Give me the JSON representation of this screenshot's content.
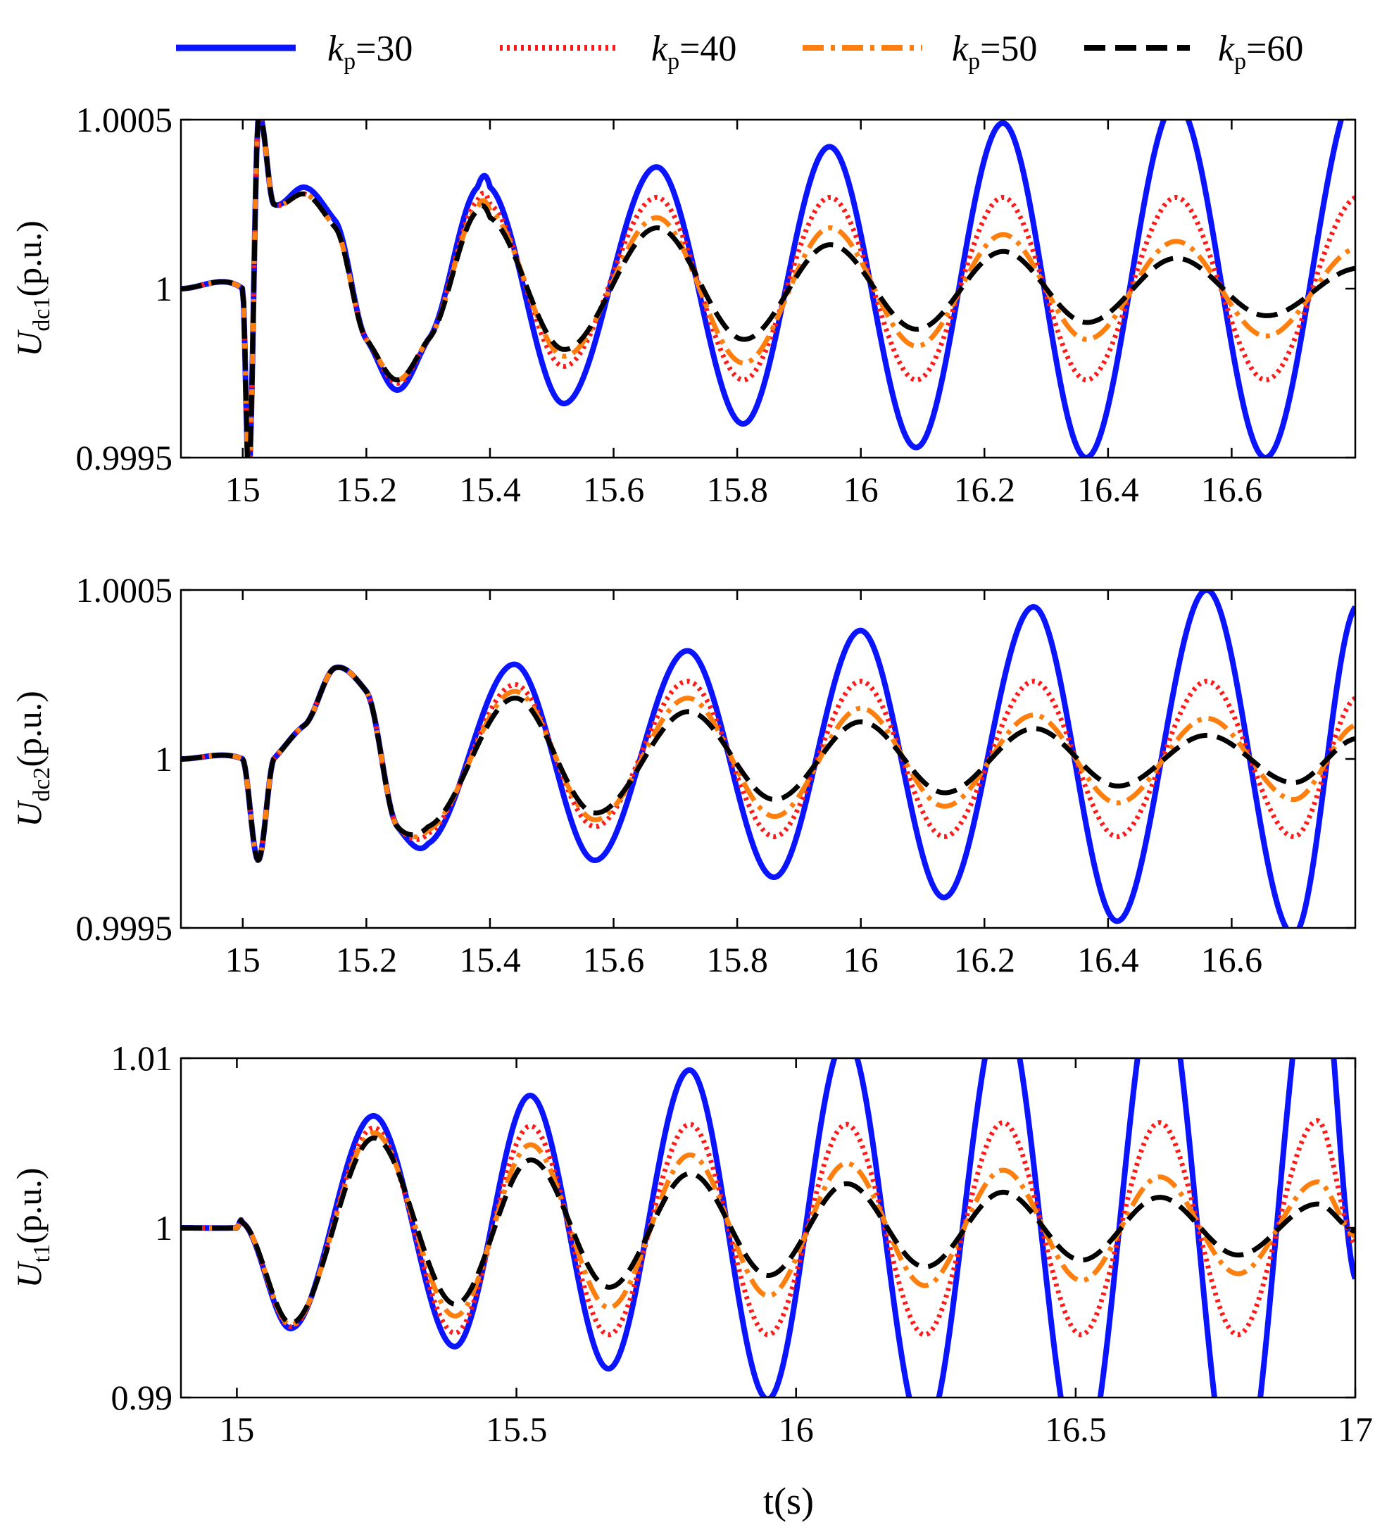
{
  "legend": {
    "symbol": "k",
    "items": [
      {
        "sub": "p",
        "label": "=30",
        "color": "#0a14ff",
        "style": "solid"
      },
      {
        "sub": "p",
        "label": "=40",
        "color": "#ff1a1a",
        "style": "dotted"
      },
      {
        "sub": "p",
        "label": "=50",
        "color": "#ff7f0e",
        "style": "dashdot"
      },
      {
        "sub": "p",
        "label": "=60",
        "color": "#000000",
        "style": "dashed"
      }
    ]
  },
  "xlabel": "t(s)",
  "chart_data": [
    {
      "type": "line",
      "ylabel": {
        "main": "U",
        "sub": "dc1",
        "rest": "(p.u.)"
      },
      "xlim": [
        14.9,
        16.8
      ],
      "ylim": [
        0.9995,
        1.0005
      ],
      "xticks": [
        15,
        15.2,
        15.4,
        15.6,
        15.8,
        16,
        16.2,
        16.4,
        16.6
      ],
      "xtick_labels": [
        "15",
        "15.2",
        "15.4",
        "15.6",
        "15.8",
        "16",
        "16.2",
        "16.4",
        "16.6"
      ],
      "yticks": [
        0.9995,
        1,
        1.0005
      ],
      "ytick_labels": [
        "0.9995",
        "1",
        "1.0005"
      ],
      "series": [
        {
          "name": "kp=30",
          "t": [
            14.9,
            15.0,
            15.01,
            15.025,
            15.05,
            15.1,
            15.15,
            15.2,
            15.25,
            15.3,
            15.38,
            15.4,
            15.52,
            15.67,
            15.81,
            15.95,
            16.09,
            16.23,
            16.365,
            16.51,
            16.655,
            16.8
          ],
          "v": [
            1.0,
            1.0,
            0.99945,
            1.0005,
            1.00025,
            1.0003,
            1.0002,
            0.99985,
            0.9997,
            0.99985,
            1.0003,
            1.0003,
            0.99966,
            1.00036,
            0.9996,
            1.00042,
            0.99953,
            1.00049,
            0.9995,
            1.00055,
            0.9995,
            1.0006
          ]
        },
        {
          "name": "kp=40",
          "t": [
            14.9,
            15.0,
            15.01,
            15.025,
            15.05,
            15.1,
            15.15,
            15.2,
            15.25,
            15.3,
            15.38,
            15.4,
            15.52,
            15.67,
            15.81,
            15.95,
            16.09,
            16.23,
            16.365,
            16.51,
            16.655,
            16.8
          ],
          "v": [
            1.0,
            1.0,
            0.99945,
            1.0005,
            1.00025,
            1.00028,
            1.00018,
            0.99985,
            0.99972,
            0.99985,
            1.00026,
            1.00025,
            0.99977,
            1.00027,
            0.99973,
            1.00027,
            0.99973,
            1.00027,
            0.99973,
            1.00027,
            0.99973,
            1.00027
          ]
        },
        {
          "name": "kp=50",
          "t": [
            14.9,
            15.0,
            15.01,
            15.025,
            15.05,
            15.1,
            15.15,
            15.2,
            15.25,
            15.3,
            15.38,
            15.4,
            15.52,
            15.67,
            15.81,
            15.95,
            16.09,
            16.23,
            16.365,
            16.51,
            16.655,
            16.8
          ],
          "v": [
            1.0,
            1.0,
            0.99945,
            1.0005,
            1.00025,
            1.00028,
            1.00018,
            0.99985,
            0.99973,
            0.99985,
            1.00024,
            1.00023,
            0.9998,
            1.00021,
            0.99978,
            1.00018,
            0.99983,
            1.00016,
            0.99985,
            1.00014,
            0.99986,
            1.00012
          ]
        },
        {
          "name": "kp=60",
          "t": [
            14.9,
            15.0,
            15.01,
            15.025,
            15.05,
            15.1,
            15.15,
            15.2,
            15.25,
            15.3,
            15.38,
            15.4,
            15.52,
            15.67,
            15.81,
            15.95,
            16.09,
            16.23,
            16.365,
            16.51,
            16.655,
            16.8
          ],
          "v": [
            1.0,
            1.0,
            0.99945,
            1.0005,
            1.00025,
            1.00028,
            1.00018,
            0.99985,
            0.99973,
            0.99985,
            1.00023,
            1.00021,
            0.99982,
            1.00018,
            0.99985,
            1.00013,
            0.99988,
            1.00011,
            0.9999,
            1.00009,
            0.99992,
            1.00006
          ]
        }
      ]
    },
    {
      "type": "line",
      "ylabel": {
        "main": "U",
        "sub": "dc2",
        "rest": "(p.u.)"
      },
      "xlim": [
        14.9,
        16.8
      ],
      "ylim": [
        0.9995,
        1.0005
      ],
      "xticks": [
        15,
        15.2,
        15.4,
        15.6,
        15.8,
        16,
        16.2,
        16.4,
        16.6
      ],
      "xtick_labels": [
        "15",
        "15.2",
        "15.4",
        "15.6",
        "15.8",
        "16",
        "16.2",
        "16.4",
        "16.6"
      ],
      "yticks": [
        0.9995,
        1,
        1.0005
      ],
      "ytick_labels": [
        "0.9995",
        "1",
        "1.0005"
      ],
      "series": [
        {
          "name": "kp=30",
          "t": [
            14.9,
            15.0,
            15.025,
            15.05,
            15.1,
            15.15,
            15.2,
            15.25,
            15.3,
            15.44,
            15.57,
            15.72,
            15.86,
            16.0,
            16.135,
            16.28,
            16.415,
            16.56,
            16.7,
            16.8
          ],
          "v": [
            1.0,
            1.0,
            0.9997,
            1.0,
            1.0001,
            1.00027,
            1.0002,
            0.9998,
            0.99975,
            1.00028,
            0.9997,
            1.00032,
            0.99965,
            1.00038,
            0.99959,
            1.00045,
            0.99952,
            1.0005,
            0.99948,
            1.00045
          ]
        },
        {
          "name": "kp=40",
          "t": [
            14.9,
            15.0,
            15.025,
            15.05,
            15.1,
            15.15,
            15.2,
            15.25,
            15.3,
            15.44,
            15.57,
            15.72,
            15.86,
            16.0,
            16.135,
            16.28,
            16.415,
            16.56,
            16.7,
            16.8
          ],
          "v": [
            1.0,
            1.0,
            0.9997,
            1.0,
            1.0001,
            1.00027,
            1.0002,
            0.9998,
            0.99978,
            1.00022,
            0.9998,
            1.00023,
            0.99977,
            1.00023,
            0.99977,
            1.00023,
            0.99977,
            1.00023,
            0.99977,
            1.00018
          ]
        },
        {
          "name": "kp=50",
          "t": [
            14.9,
            15.0,
            15.025,
            15.05,
            15.1,
            15.15,
            15.2,
            15.25,
            15.3,
            15.44,
            15.57,
            15.72,
            15.86,
            16.0,
            16.135,
            16.28,
            16.415,
            16.56,
            16.7,
            16.8
          ],
          "v": [
            1.0,
            1.0,
            0.9997,
            1.0,
            1.0001,
            1.00027,
            1.0002,
            0.9998,
            0.99979,
            1.0002,
            0.99982,
            1.00018,
            0.99983,
            1.00015,
            0.99986,
            1.00013,
            0.99987,
            1.00012,
            0.99988,
            1.0001
          ]
        },
        {
          "name": "kp=60",
          "t": [
            14.9,
            15.0,
            15.025,
            15.05,
            15.1,
            15.15,
            15.2,
            15.25,
            15.3,
            15.44,
            15.57,
            15.72,
            15.86,
            16.0,
            16.135,
            16.28,
            16.415,
            16.56,
            16.7,
            16.8
          ],
          "v": [
            1.0,
            1.0,
            0.9997,
            1.0,
            1.0001,
            1.00027,
            1.0002,
            0.9998,
            0.9998,
            1.00018,
            0.99984,
            1.00014,
            0.99988,
            1.00011,
            0.9999,
            1.00009,
            0.99992,
            1.00007,
            0.99993,
            1.00006
          ]
        }
      ]
    },
    {
      "type": "line",
      "ylabel": {
        "main": "U",
        "sub": "t1",
        "rest": "(p.u.)"
      },
      "xlim": [
        14.9,
        17.0
      ],
      "ylim": [
        0.99,
        1.01
      ],
      "xticks": [
        15,
        15.5,
        16,
        16.5,
        17
      ],
      "xtick_labels": [
        "15",
        "15.5",
        "16",
        "16.5",
        "17"
      ],
      "yticks": [
        0.99,
        1,
        1.01
      ],
      "ytick_labels": [
        "0.99",
        "1",
        "1.01"
      ],
      "series": [
        {
          "name": "kp=30",
          "t": [
            14.9,
            15.0,
            15.01,
            15.1,
            15.245,
            15.39,
            15.525,
            15.665,
            15.81,
            15.95,
            16.09,
            16.23,
            16.37,
            16.51,
            16.65,
            16.79,
            16.93,
            17.0
          ],
          "v": [
            1.0,
            1.0,
            1.0003,
            0.9941,
            1.0066,
            0.993,
            1.0078,
            0.9917,
            1.0093,
            0.9899,
            1.0112,
            0.9878,
            1.0132,
            0.9856,
            1.0155,
            0.9834,
            1.0178,
            0.997
          ]
        },
        {
          "name": "kp=40",
          "t": [
            14.9,
            15.0,
            15.01,
            15.1,
            15.245,
            15.39,
            15.525,
            15.665,
            15.81,
            15.95,
            16.09,
            16.23,
            16.37,
            16.51,
            16.65,
            16.79,
            16.93,
            17.0
          ],
          "v": [
            1.0,
            1.0,
            1.0003,
            0.9942,
            1.0059,
            0.9938,
            1.006,
            0.9937,
            1.0061,
            0.9937,
            1.0061,
            0.9937,
            1.0062,
            0.9937,
            1.0062,
            0.9937,
            1.0063,
            0.999
          ]
        },
        {
          "name": "kp=50",
          "t": [
            14.9,
            15.0,
            15.01,
            15.1,
            15.245,
            15.39,
            15.525,
            15.665,
            15.81,
            15.95,
            16.09,
            16.23,
            16.37,
            16.51,
            16.65,
            16.79,
            16.93,
            17.0
          ],
          "v": [
            1.0,
            1.0,
            1.0003,
            0.9943,
            1.0056,
            0.9948,
            1.0049,
            0.9953,
            1.0043,
            0.996,
            1.0038,
            0.9966,
            1.0034,
            0.9969,
            1.003,
            0.9973,
            1.0027,
            0.9995
          ]
        },
        {
          "name": "kp=60",
          "t": [
            14.9,
            15.0,
            15.01,
            15.1,
            15.245,
            15.39,
            15.525,
            15.665,
            15.81,
            15.95,
            16.09,
            16.23,
            16.37,
            16.51,
            16.65,
            16.79,
            16.93,
            17.0
          ],
          "v": [
            1.0,
            1.0,
            1.0003,
            0.9944,
            1.0053,
            0.9955,
            1.004,
            0.9965,
            1.0032,
            0.9972,
            1.0026,
            0.9977,
            1.0021,
            0.9981,
            1.0018,
            0.9984,
            1.0014,
            0.9998
          ]
        }
      ]
    }
  ]
}
